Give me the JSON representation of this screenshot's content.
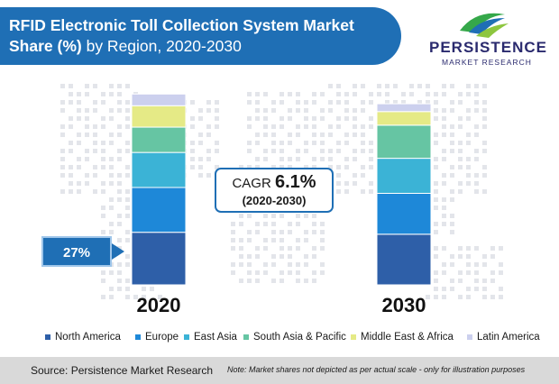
{
  "title": {
    "bold": "RFID Electronic Toll Collection System Market",
    "line2_bold": "Share (%)",
    "line2_rest": " by Region, 2020-2030"
  },
  "logo": {
    "word": "PERSISTENCE",
    "sub": "MARKET RESEARCH"
  },
  "cagr": {
    "label": "CAGR ",
    "value": "6.1%",
    "period": "(2020-2030)"
  },
  "callout": {
    "text": "27%"
  },
  "chart_data": {
    "type": "bar",
    "stacked": true,
    "categories": [
      "2020",
      "2030"
    ],
    "series": [
      {
        "name": "North America",
        "color": "#2e5fa8",
        "values": [
          27,
          26
        ]
      },
      {
        "name": "Europe",
        "color": "#1e88d8",
        "values": [
          23,
          21
        ]
      },
      {
        "name": "East Asia",
        "color": "#3bb3d6",
        "values": [
          18,
          18
        ]
      },
      {
        "name": "South Asia & Pacific",
        "color": "#66c5a3",
        "values": [
          13,
          17
        ]
      },
      {
        "name": "Middle East & Africa",
        "color": "#e5ea86",
        "values": [
          11,
          7
        ]
      },
      {
        "name": "Latin America",
        "color": "#ccd0ee",
        "values": [
          6,
          4
        ]
      }
    ],
    "ylim": [
      0,
      100
    ],
    "legend_position": "bottom"
  },
  "footer": {
    "source": "Source: Persistence Market Research",
    "note": "Note: Market shares not depicted as per actual scale - only for illustration purposes"
  }
}
